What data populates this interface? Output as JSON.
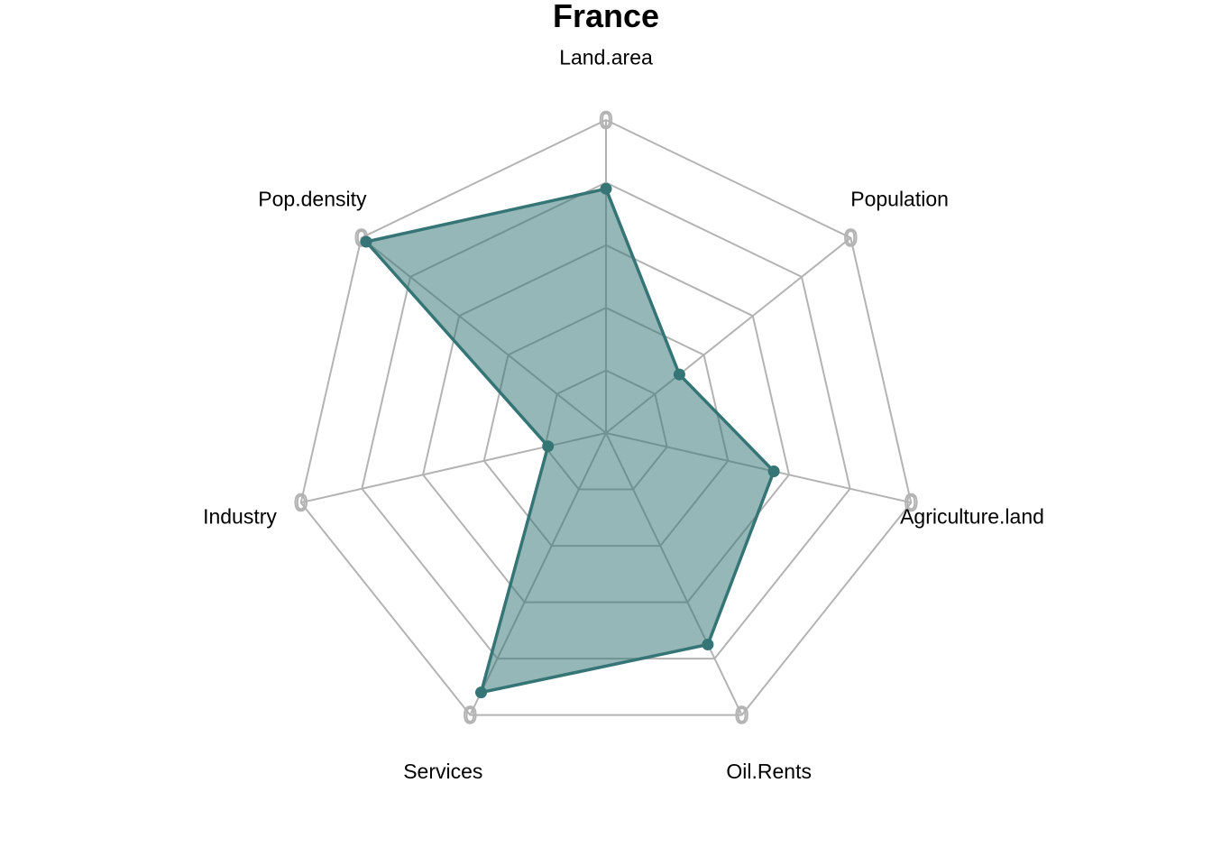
{
  "chart_data": {
    "type": "radar",
    "title": "France",
    "axes": [
      "Land.area",
      "Population",
      "Agriculture.land",
      "Oil.Rents",
      "Services",
      "Industry",
      "Pop.density"
    ],
    "series": [
      {
        "values": [
          0.78,
          0.3,
          0.55,
          0.75,
          0.92,
          0.19,
          0.98
        ]
      }
    ],
    "range": [
      0,
      1
    ],
    "grid_levels": 5,
    "ring_tick_label": "0",
    "grid": true,
    "colors": {
      "series_line": "#357575",
      "series_fill": "#357575",
      "series_fill_opacity": 0.52,
      "grid": "#b3b3b3"
    }
  }
}
